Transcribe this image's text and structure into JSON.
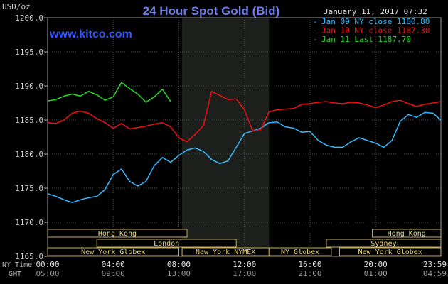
{
  "chart_data": {
    "type": "line",
    "title": "24 Hour Spot Gold (Bid)",
    "website": "www.kitco.com",
    "date_label": "January 11, 2017 07:32",
    "y_unit": "USD/oz",
    "ylim": [
      1165.0,
      1200.0
    ],
    "y_ticks": [
      "1165.0",
      "1170.0",
      "1175.0",
      "1180.0",
      "1185.0",
      "1190.0",
      "1195.0",
      "1200.0"
    ],
    "x_hours": [
      0,
      4,
      8,
      12,
      16,
      20,
      23.983
    ],
    "x_ticks": [
      "00:00",
      "04:00",
      "08:00",
      "12:00",
      "16:00",
      "20:00",
      "23:59"
    ],
    "x_ticks_ny_label": "NY Time",
    "x_ticks_gmt_label": "GMT",
    "x_ticks_gmt": [
      "05:00",
      "09:00",
      "13:00",
      "17:00",
      "21:00",
      "01:00",
      "04:59"
    ],
    "grid": true,
    "legend_position": "top-right",
    "series": [
      {
        "name": "Jan 09 NY close 1180.80",
        "color": "#33bbff",
        "x": [
          0.0,
          0.5,
          1.0,
          1.5,
          2.0,
          2.5,
          3.0,
          3.5,
          4.0,
          4.5,
          5.0,
          5.5,
          6.0,
          6.5,
          7.0,
          7.5,
          8.0,
          8.5,
          9.0,
          9.5,
          10.0,
          10.5,
          11.0,
          11.5,
          12.0,
          12.5,
          13.0,
          13.5,
          14.0,
          14.5,
          15.0,
          15.5,
          16.0,
          16.5,
          17.0,
          17.5,
          18.0,
          18.5,
          19.0,
          19.5,
          20.0,
          20.5,
          21.0,
          21.5,
          22.0,
          22.5,
          23.0,
          23.5,
          23.98
        ],
        "values": [
          1174.2,
          1173.8,
          1173.3,
          1172.9,
          1173.3,
          1173.6,
          1173.8,
          1174.8,
          1177.0,
          1177.8,
          1176.0,
          1175.3,
          1176.0,
          1178.3,
          1179.5,
          1178.8,
          1179.8,
          1180.6,
          1180.9,
          1180.4,
          1179.2,
          1178.6,
          1179.0,
          1181.0,
          1183.0,
          1183.4,
          1183.8,
          1184.6,
          1184.7,
          1184.0,
          1183.8,
          1183.2,
          1183.3,
          1182.0,
          1181.3,
          1181.0,
          1181.0,
          1181.8,
          1182.4,
          1182.0,
          1181.6,
          1181.0,
          1182.0,
          1184.8,
          1185.8,
          1185.4,
          1186.1,
          1186.0,
          1185.0
        ]
      },
      {
        "name": "Jan 10 NY close 1187.30",
        "color": "#ee1111",
        "x": [
          0.0,
          0.5,
          1.0,
          1.5,
          2.0,
          2.5,
          3.0,
          3.5,
          4.0,
          4.5,
          5.0,
          5.5,
          6.0,
          6.5,
          7.0,
          7.5,
          8.0,
          8.5,
          9.0,
          9.5,
          10.0,
          10.5,
          11.0,
          11.5,
          12.0,
          12.5,
          13.0,
          13.5,
          14.0,
          14.5,
          15.0,
          15.5,
          16.0,
          16.5,
          17.0,
          17.5,
          18.0,
          18.5,
          19.0,
          19.5,
          20.0,
          20.5,
          21.0,
          21.5,
          22.0,
          22.5,
          23.0,
          23.5,
          23.98
        ],
        "values": [
          1184.6,
          1184.5,
          1185.0,
          1186.0,
          1186.3,
          1186.0,
          1185.2,
          1184.6,
          1183.8,
          1184.5,
          1183.7,
          1183.9,
          1184.1,
          1184.4,
          1184.6,
          1184.0,
          1182.4,
          1181.8,
          1182.9,
          1184.2,
          1189.2,
          1188.6,
          1188.0,
          1188.1,
          1186.5,
          1183.4,
          1183.6,
          1186.2,
          1186.5,
          1186.6,
          1186.7,
          1187.3,
          1187.4,
          1187.6,
          1187.7,
          1187.5,
          1187.4,
          1187.6,
          1187.5,
          1187.2,
          1186.8,
          1187.2,
          1187.7,
          1187.9,
          1187.4,
          1187.0,
          1187.3,
          1187.5,
          1187.7
        ]
      },
      {
        "name": "Jan 11 Last 1187.70",
        "color": "#22dd22",
        "x": [
          0.0,
          0.5,
          1.0,
          1.5,
          2.0,
          2.5,
          3.0,
          3.5,
          4.0,
          4.5,
          5.0,
          5.5,
          6.0,
          6.5,
          7.0,
          7.5
        ],
        "values": [
          1187.8,
          1188.0,
          1188.5,
          1188.8,
          1188.5,
          1189.2,
          1188.7,
          1187.9,
          1188.4,
          1190.5,
          1189.6,
          1188.8,
          1187.6,
          1188.4,
          1189.5,
          1187.7
        ]
      }
    ],
    "market_sessions": [
      {
        "label": "Hong Kong",
        "row": 0,
        "start": 0.0,
        "end": 8.5
      },
      {
        "label": "Hong Kong",
        "row": 0,
        "start": 19.8,
        "end": 23.98
      },
      {
        "label": "London",
        "row": 1,
        "start": 3.0,
        "end": 11.5
      },
      {
        "label": "Sydney",
        "row": 1,
        "start": 17.0,
        "end": 23.98
      },
      {
        "label": "New York Globex",
        "row": 2,
        "start": 0.0,
        "end": 8.0
      },
      {
        "label": "New York NYMEX",
        "row": 2,
        "start": 8.2,
        "end": 13.5
      },
      {
        "label": "NY Globex",
        "row": 2,
        "start": 13.5,
        "end": 17.3
      },
      {
        "label": "New York Globex",
        "row": 2,
        "start": 17.8,
        "end": 23.98
      }
    ],
    "highlight_hours": [
      8.2,
      13.5
    ]
  }
}
